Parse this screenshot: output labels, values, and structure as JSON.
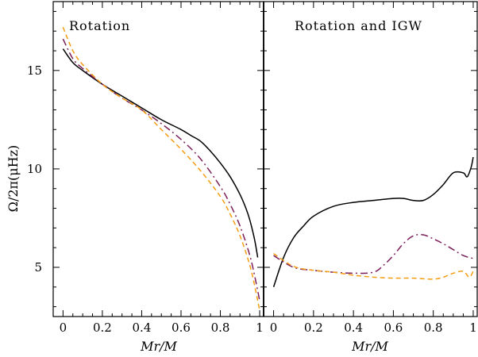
{
  "chart_data": {
    "type": "line",
    "ylabel": "Ω/2π(μHz)",
    "xlabel": "Mr/M",
    "ylim": [
      2.5,
      18.5
    ],
    "xlim": [
      -0.05,
      1.02
    ],
    "x_ticks": [
      0,
      0.2,
      0.4,
      0.6,
      0.8,
      1
    ],
    "x_tick_labels": [
      "0",
      "0.2",
      "0.4",
      "0.6",
      "0.8",
      "1"
    ],
    "y_ticks": [
      5,
      10,
      15
    ],
    "y_tick_labels": [
      "5",
      "10",
      "15"
    ],
    "panels": [
      {
        "title": "Rotation",
        "series": [
          {
            "color": "#000000",
            "dash": "solid",
            "x": [
              0,
              0.05,
              0.1,
              0.2,
              0.3,
              0.4,
              0.5,
              0.6,
              0.65,
              0.7,
              0.75,
              0.8,
              0.85,
              0.9,
              0.93,
              0.95,
              0.97,
              0.98,
              0.99
            ],
            "y": [
              16.1,
              15.4,
              15.0,
              14.3,
              13.7,
              13.1,
              12.5,
              12.0,
              11.7,
              11.4,
              10.9,
              10.3,
              9.6,
              8.7,
              8.0,
              7.4,
              6.6,
              6.1,
              5.5
            ]
          },
          {
            "color": "#7b1f5a",
            "dash": "dashdot",
            "x": [
              0,
              0.05,
              0.1,
              0.2,
              0.3,
              0.4,
              0.5,
              0.6,
              0.7,
              0.8,
              0.85,
              0.9,
              0.95,
              0.98,
              1.0
            ],
            "y": [
              16.6,
              15.6,
              15.1,
              14.3,
              13.6,
              13.0,
              12.3,
              11.5,
              10.5,
              9.1,
              8.2,
              7.1,
              5.6,
              4.3,
              3.3
            ]
          },
          {
            "color": "#f39c12",
            "dash": "dashed",
            "x": [
              0,
              0.05,
              0.1,
              0.2,
              0.3,
              0.4,
              0.5,
              0.6,
              0.7,
              0.8,
              0.85,
              0.9,
              0.95,
              0.98,
              1.0
            ],
            "y": [
              17.2,
              16.0,
              15.3,
              14.3,
              13.6,
              13.0,
              12.0,
              11.0,
              9.9,
              8.6,
              7.7,
              6.6,
              5.1,
              3.8,
              2.8
            ]
          }
        ]
      },
      {
        "title": "Rotation and IGW",
        "series": [
          {
            "color": "#000000",
            "dash": "solid",
            "x": [
              0,
              0.05,
              0.1,
              0.15,
              0.2,
              0.3,
              0.4,
              0.5,
              0.6,
              0.65,
              0.7,
              0.75,
              0.8,
              0.85,
              0.9,
              0.95,
              0.97,
              0.99,
              1.0
            ],
            "y": [
              4.0,
              5.5,
              6.5,
              7.1,
              7.6,
              8.1,
              8.3,
              8.4,
              8.5,
              8.5,
              8.4,
              8.4,
              8.7,
              9.2,
              9.8,
              9.8,
              9.6,
              10.1,
              10.6
            ]
          },
          {
            "color": "#7b1f5a",
            "dash": "dashdot",
            "x": [
              0,
              0.1,
              0.2,
              0.3,
              0.4,
              0.5,
              0.55,
              0.6,
              0.65,
              0.7,
              0.75,
              0.8,
              0.85,
              0.9,
              0.95,
              1.0
            ],
            "y": [
              5.6,
              5.0,
              4.85,
              4.75,
              4.7,
              4.75,
              5.1,
              5.6,
              6.2,
              6.6,
              6.65,
              6.45,
              6.2,
              5.9,
              5.6,
              5.45
            ]
          },
          {
            "color": "#f39c12",
            "dash": "dashed",
            "x": [
              0,
              0.1,
              0.2,
              0.3,
              0.4,
              0.5,
              0.6,
              0.7,
              0.8,
              0.85,
              0.9,
              0.95,
              0.98,
              1.0
            ],
            "y": [
              5.7,
              5.05,
              4.85,
              4.75,
              4.6,
              4.5,
              4.45,
              4.45,
              4.4,
              4.5,
              4.7,
              4.8,
              4.5,
              4.8
            ]
          }
        ]
      }
    ]
  }
}
